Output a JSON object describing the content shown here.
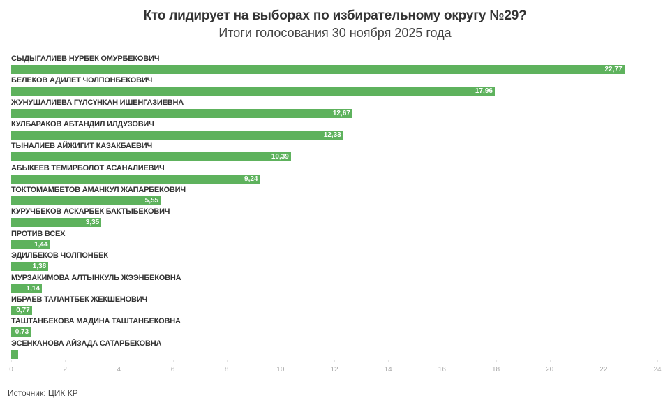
{
  "header": {
    "title": "Кто лидирует на выборах по избирательному округу №29?",
    "subtitle": "Итоги голосования 30 ноября 2025 года"
  },
  "chart_data": {
    "type": "bar",
    "orientation": "horizontal",
    "title": "Кто лидирует на выборах по избирательному округу №29?",
    "subtitle": "Итоги голосования 30 ноября 2025 года",
    "xlabel": "",
    "ylabel": "",
    "xlim": [
      0,
      24
    ],
    "x_ticks": [
      0,
      2,
      4,
      6,
      8,
      10,
      12,
      14,
      16,
      18,
      20,
      22,
      24
    ],
    "grid": false,
    "legend": null,
    "bar_color": "#5eb25d",
    "categories": [
      "СЫДЫГАЛИЕВ НУРБЕК ОМУРБЕКОВИЧ",
      "БЕЛЕКОВ АДИЛЕТ ЧОЛПОНБЕКОВИЧ",
      "ЖУНУШАЛИЕВА ГҮЛСҮНКАН ИШЕНГАЗИЕВНА",
      "КУЛБАРАКОВ АБТАНДИЛ ИЛДУЗОВИЧ",
      "ТЫНАЛИЕВ АЙЖИГИТ КАЗАКБАЕВИЧ",
      "АБЫКЕЕВ ТЕМИРБОЛОТ АСАНАЛИЕВИЧ",
      "ТОКТОМАМБЕТОВ АМАНКУЛ ЖАПАРБЕКОВИЧ",
      "КУРУЧБЕКОВ АСКАРБЕК БАКТЫБЕКОВИЧ",
      "ПРОТИВ ВСЕХ",
      "ЭДИЛБЕКОВ ЧОЛПОНБЕК",
      "МУРЗАКИМОВА АЛТЫНКУЛЬ ЖЭЭНБЕКОВНА",
      "ИБРАЕВ ТАЛАНТБЕК ЖЕКШЕНОВИЧ",
      "ТАШТАНБЕКОВА МАДИНА ТАШТАНБЕКОВНА",
      "ЭСЕНКАНОВА АЙЗАДА САТАРБЕКОВНА"
    ],
    "values": [
      22.77,
      17.96,
      12.67,
      12.33,
      10.39,
      9.24,
      5.55,
      3.35,
      1.44,
      1.38,
      1.14,
      0.77,
      0.73,
      0.27
    ],
    "value_labels": [
      "22,77",
      "17,96",
      "12,67",
      "12,33",
      "10,39",
      "9,24",
      "5,55",
      "3,35",
      "1,44",
      "1,38",
      "1,14",
      "0,77",
      "0,73",
      ""
    ]
  },
  "footer": {
    "source_prefix": "Источник: ",
    "source_link": "ЦИК КР"
  }
}
